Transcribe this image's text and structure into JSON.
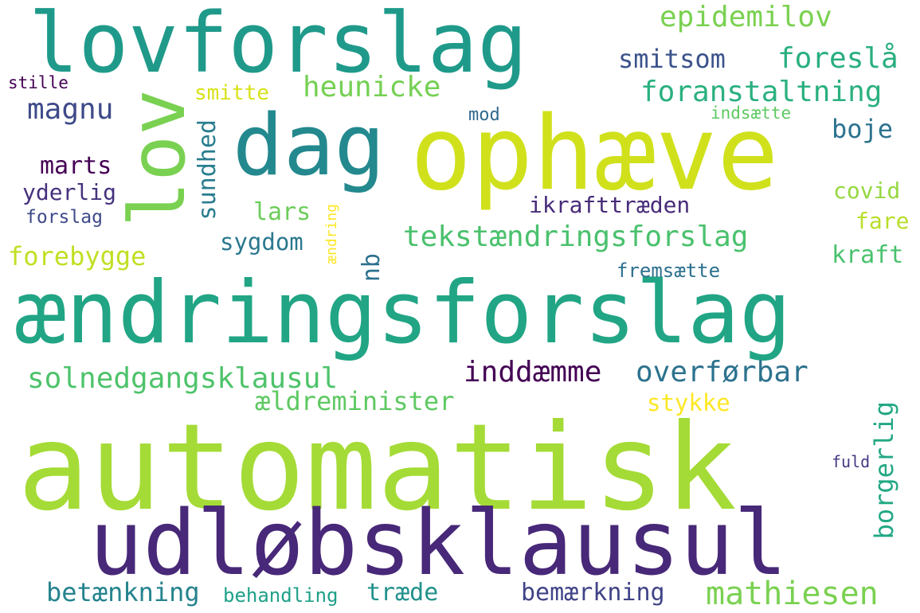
{
  "colors": {
    "background": "#ffffff"
  },
  "words": [
    {
      "text": "automatisk",
      "color": "#a5db36"
    },
    {
      "text": "udløbsklausul",
      "color": "#482878"
    },
    {
      "text": "ændringsforslag",
      "color": "#21a585"
    },
    {
      "text": "ophæve",
      "color": "#d0e11c"
    },
    {
      "text": "lovforslag",
      "color": "#1f9a8a"
    },
    {
      "text": "dag",
      "color": "#23898e"
    },
    {
      "text": "lov",
      "color": "#7ad151"
    },
    {
      "text": "epidemilov",
      "color": "#7ad151"
    },
    {
      "text": "smitsom",
      "color": "#3b528b"
    },
    {
      "text": "foreslå",
      "color": "#29af7f"
    },
    {
      "text": "foranstaltning",
      "color": "#2ab07f"
    },
    {
      "text": "heunicke",
      "color": "#75d054"
    },
    {
      "text": "smitte",
      "color": "#d8e219"
    },
    {
      "text": "magnu",
      "color": "#3e4a89"
    },
    {
      "text": "stille",
      "color": "#440154"
    },
    {
      "text": "mod",
      "color": "#31688e"
    },
    {
      "text": "indsætte",
      "color": "#5ec962"
    },
    {
      "text": "boje",
      "color": "#2c728e"
    },
    {
      "text": "marts",
      "color": "#440154"
    },
    {
      "text": "sundhed",
      "color": "#287d8e"
    },
    {
      "text": "yderlig",
      "color": "#46327e"
    },
    {
      "text": "forslag",
      "color": "#3e4a89"
    },
    {
      "text": "lars",
      "color": "#6ccd5a"
    },
    {
      "text": "ikrafttræden",
      "color": "#472c7a"
    },
    {
      "text": "covid",
      "color": "#95d840"
    },
    {
      "text": "fare",
      "color": "#b8de29"
    },
    {
      "text": "ændring",
      "color": "#fde725"
    },
    {
      "text": "tekstændringsforslag",
      "color": "#4ac16d"
    },
    {
      "text": "sygdom",
      "color": "#2a788e"
    },
    {
      "text": "kraft",
      "color": "#4ac16d"
    },
    {
      "text": "forebygge",
      "color": "#c2df23"
    },
    {
      "text": "nb",
      "color": "#2d718e"
    },
    {
      "text": "fremsætte",
      "color": "#2d708e"
    },
    {
      "text": "solnedgangsklausul",
      "color": "#4ec36b"
    },
    {
      "text": "inddæmme",
      "color": "#440154"
    },
    {
      "text": "overførbar",
      "color": "#2c728e"
    },
    {
      "text": "ældreminister",
      "color": "#5ec962"
    },
    {
      "text": "stykke",
      "color": "#fde725"
    },
    {
      "text": "borgerlig",
      "color": "#22a884"
    },
    {
      "text": "fuld",
      "color": "#443a83"
    },
    {
      "text": "betænkning",
      "color": "#25838e"
    },
    {
      "text": "behandling",
      "color": "#1fa188"
    },
    {
      "text": "træde",
      "color": "#21918c"
    },
    {
      "text": "bemærkning",
      "color": "#414487"
    },
    {
      "text": "mathiesen",
      "color": "#7ad151"
    }
  ]
}
